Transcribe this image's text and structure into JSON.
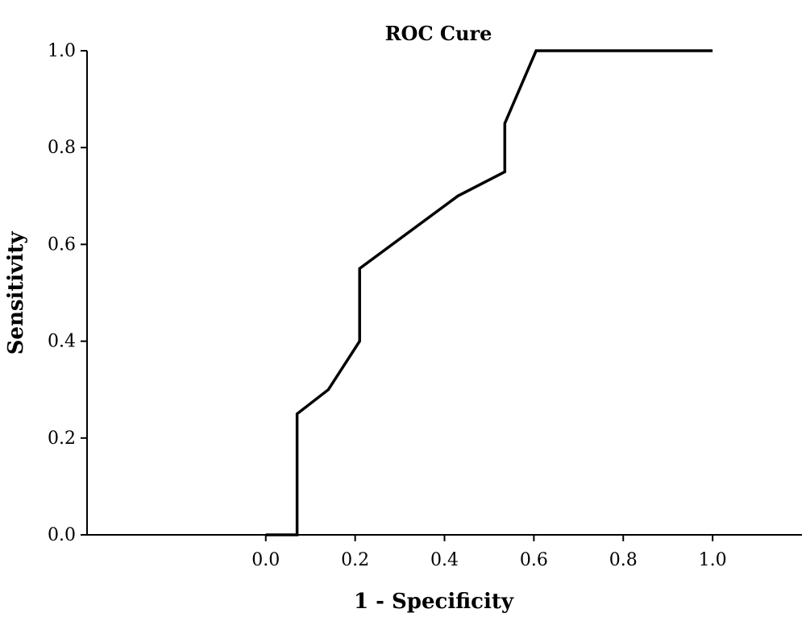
{
  "chart_data": {
    "type": "line",
    "title": "ROC Cure",
    "xlabel": "1 - Specificity",
    "ylabel": "Sensitivity",
    "xlim": [
      -0.4,
      1.2
    ],
    "ylim": [
      0,
      1
    ],
    "xticks": [
      0.0,
      0.2,
      0.4,
      0.6,
      0.8,
      1.0
    ],
    "xtick_labels": [
      "0.0",
      "0.2",
      "0.4",
      "0.6",
      "0.8",
      "1.0"
    ],
    "yticks": [
      0.0,
      0.2,
      0.4,
      0.6,
      0.8,
      1.0
    ],
    "ytick_labels": [
      "0.0",
      "0.2",
      "0.4",
      "0.6",
      "0.8",
      "1.0"
    ],
    "grid": false,
    "series": [
      {
        "x": [
          0.0,
          0.07,
          0.07,
          0.14,
          0.21,
          0.21,
          0.43,
          0.535,
          0.535,
          0.605,
          1.0
        ],
        "y": [
          0.0,
          0.0,
          0.25,
          0.3,
          0.4,
          0.55,
          0.7,
          0.75,
          0.85,
          1.0,
          1.0
        ]
      }
    ]
  }
}
